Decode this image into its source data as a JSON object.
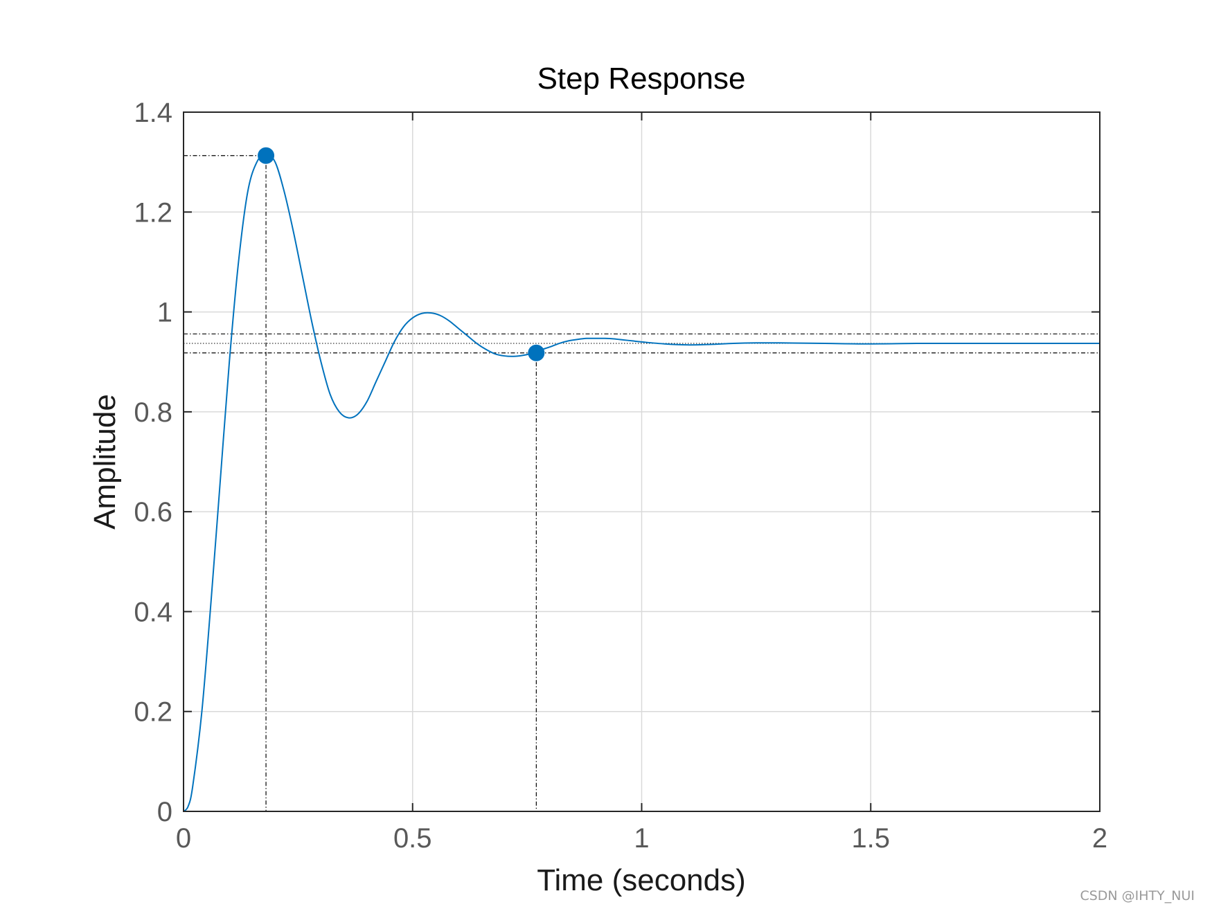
{
  "chart_data": {
    "type": "line",
    "title": "Step Response",
    "xlabel": "Time (seconds)",
    "ylabel": "Amplitude",
    "xlim": [
      0,
      2
    ],
    "ylim": [
      0,
      1.4
    ],
    "xticks": [
      0,
      0.5,
      1,
      1.5,
      2
    ],
    "yticks": [
      0,
      0.2,
      0.4,
      0.6,
      0.8,
      1,
      1.2,
      1.4
    ],
    "xtick_labels": [
      "0",
      "0.5",
      "1",
      "1.5",
      "2"
    ],
    "ytick_labels": [
      "0",
      "0.2",
      "0.4",
      "0.6",
      "0.8",
      "1",
      "1.2",
      "1.4"
    ],
    "grid": true,
    "series": [
      {
        "color": "#0072BD",
        "points": [
          [
            0,
            0
          ],
          [
            0.01,
            0.01
          ],
          [
            0.02,
            0.05
          ],
          [
            0.04,
            0.2
          ],
          [
            0.06,
            0.42
          ],
          [
            0.08,
            0.66
          ],
          [
            0.1,
            0.9
          ],
          [
            0.12,
            1.1
          ],
          [
            0.14,
            1.24
          ],
          [
            0.16,
            1.3
          ],
          [
            0.18,
            1.315
          ],
          [
            0.2,
            1.3
          ],
          [
            0.22,
            1.24
          ],
          [
            0.24,
            1.16
          ],
          [
            0.26,
            1.07
          ],
          [
            0.28,
            0.98
          ],
          [
            0.3,
            0.9
          ],
          [
            0.32,
            0.835
          ],
          [
            0.34,
            0.8
          ],
          [
            0.36,
            0.788
          ],
          [
            0.38,
            0.795
          ],
          [
            0.4,
            0.82
          ],
          [
            0.42,
            0.86
          ],
          [
            0.44,
            0.9
          ],
          [
            0.46,
            0.94
          ],
          [
            0.48,
            0.97
          ],
          [
            0.5,
            0.988
          ],
          [
            0.52,
            0.997
          ],
          [
            0.54,
            0.998
          ],
          [
            0.56,
            0.993
          ],
          [
            0.58,
            0.982
          ],
          [
            0.6,
            0.967
          ],
          [
            0.62,
            0.952
          ],
          [
            0.64,
            0.937
          ],
          [
            0.66,
            0.925
          ],
          [
            0.68,
            0.916
          ],
          [
            0.7,
            0.912
          ],
          [
            0.72,
            0.911
          ],
          [
            0.74,
            0.913
          ],
          [
            0.76,
            0.917
          ],
          [
            0.78,
            0.924
          ],
          [
            0.8,
            0.93
          ],
          [
            0.82,
            0.937
          ],
          [
            0.84,
            0.942
          ],
          [
            0.86,
            0.945
          ],
          [
            0.88,
            0.947
          ],
          [
            0.9,
            0.947
          ],
          [
            0.92,
            0.947
          ],
          [
            0.94,
            0.946
          ],
          [
            0.96,
            0.944
          ],
          [
            0.98,
            0.942
          ],
          [
            1.0,
            0.94
          ],
          [
            1.05,
            0.936
          ],
          [
            1.1,
            0.934
          ],
          [
            1.15,
            0.935
          ],
          [
            1.2,
            0.937
          ],
          [
            1.25,
            0.938
          ],
          [
            1.3,
            0.938
          ],
          [
            1.4,
            0.937
          ],
          [
            1.5,
            0.936
          ],
          [
            1.6,
            0.937
          ],
          [
            1.7,
            0.937
          ],
          [
            1.8,
            0.937
          ],
          [
            1.9,
            0.937
          ],
          [
            2.0,
            0.937
          ]
        ]
      }
    ],
    "markers": [
      {
        "x": 0.18,
        "y": 1.313,
        "color": "#0072BD"
      },
      {
        "x": 0.77,
        "y": 0.918,
        "color": "#0072BD"
      }
    ],
    "settling_band": {
      "upper": 0.956,
      "lower": 0.918,
      "final_value": 0.937
    }
  },
  "watermark": "CSDN @IHTY_NUI"
}
